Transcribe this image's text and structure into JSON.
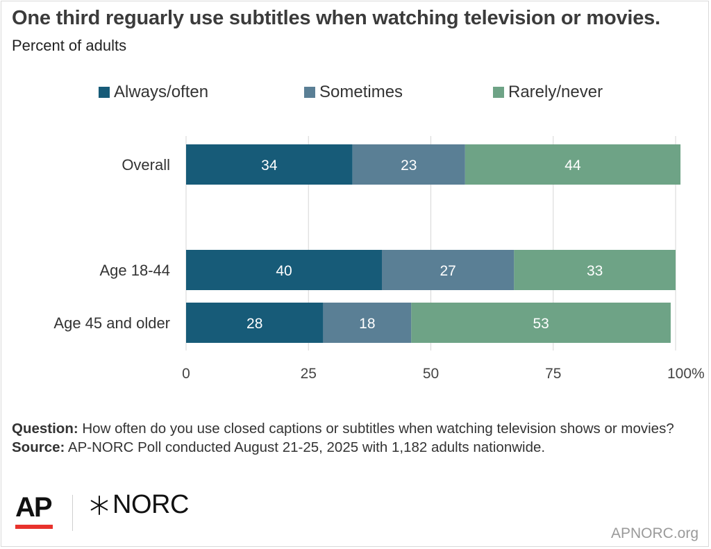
{
  "header": {
    "title": "One third reguarly use subtitles when watching television or movies.",
    "subtitle": "Percent of adults"
  },
  "colors": {
    "always": "#175b78",
    "sometimes": "#5a7f95",
    "rarely": "#6ea386",
    "gridline": "#d6d6d6",
    "bar_label": "#ffffff",
    "axis_text": "#444444"
  },
  "chart_data": {
    "type": "bar",
    "orientation": "horizontal",
    "stacked": true,
    "title": "One third reguarly use subtitles when watching television or movies.",
    "subtitle": "Percent of adults",
    "categories": [
      "Overall",
      "Age 18-44",
      "Age 45 and older"
    ],
    "series": [
      {
        "name": "Always/often",
        "values": [
          34,
          40,
          28
        ]
      },
      {
        "name": "Sometimes",
        "values": [
          23,
          27,
          18
        ]
      },
      {
        "name": "Rarely/never",
        "values": [
          44,
          33,
          53
        ]
      }
    ],
    "xlim": [
      0,
      100
    ],
    "x_ticks": [
      "0",
      "25",
      "50",
      "75",
      "100%"
    ],
    "x_tick_values": [
      0,
      25,
      50,
      75,
      100
    ],
    "grid": true,
    "legend": "top"
  },
  "footnote": {
    "question_label": "Question:",
    "question_text": "How often do you use closed captions or subtitles when watching television shows or movies?",
    "source_label": "Source:",
    "source_text": "AP-NORC Poll conducted August 21-25, 2025 with 1,182 adults nationwide."
  },
  "branding": {
    "ap_logo": "AP",
    "norc_logo": "NORC",
    "norc_icon": "norc-star-icon",
    "site": "APNORC.org"
  }
}
